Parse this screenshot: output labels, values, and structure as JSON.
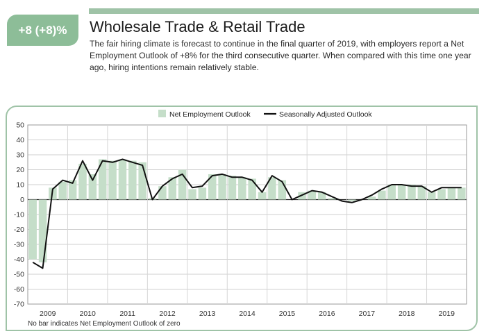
{
  "header": {
    "badge": "+8 (+8)%",
    "title": "Wholesale Trade & Retail Trade",
    "description": "The fair hiring climate is forecast to continue in the final quarter of 2019, with employers report a Net Employment Outlook of +8% for the third consecutive quarter. When compared with this time one year ago, hiring intentions remain relatively stable.",
    "accent_color": "#8dbd98"
  },
  "chart_data": {
    "type": "bar",
    "legend": [
      {
        "label": "Net Employment Outlook",
        "kind": "bar",
        "color": "#c5dec9"
      },
      {
        "label": "Seasonally Adjusted Outlook",
        "kind": "line",
        "color": "#111111"
      }
    ],
    "years": [
      "2009",
      "2010",
      "2011",
      "2012",
      "2013",
      "2014",
      "2015",
      "2016",
      "2017",
      "2018",
      "2019"
    ],
    "ylim": [
      -70,
      50
    ],
    "yticks": [
      50,
      40,
      30,
      20,
      10,
      0,
      -10,
      -20,
      -30,
      -40,
      -50,
      -60,
      -70
    ],
    "quarters_per_year": 4,
    "net_outlook": [
      -40,
      -42,
      8,
      12,
      13,
      24,
      17,
      27,
      26,
      27,
      26,
      25,
      1,
      9,
      15,
      20,
      7,
      8,
      17,
      17,
      16,
      15,
      14,
      5,
      15,
      13,
      0,
      5,
      6,
      5,
      1,
      0,
      -1,
      0,
      2,
      6,
      10,
      10,
      10,
      9,
      5,
      7,
      8,
      8
    ],
    "seasonally_adjusted": [
      -42,
      -46,
      7,
      13,
      11,
      26,
      13,
      26,
      25,
      27,
      25,
      23,
      0,
      9,
      14,
      17,
      8,
      9,
      16,
      17,
      15,
      15,
      13,
      5,
      16,
      12,
      0,
      3,
      6,
      5,
      2,
      -1,
      -2,
      0,
      3,
      7,
      10,
      10,
      9,
      9,
      5,
      8,
      8,
      8
    ],
    "footnote": "No bar indicates Net Employment Outlook of zero"
  }
}
